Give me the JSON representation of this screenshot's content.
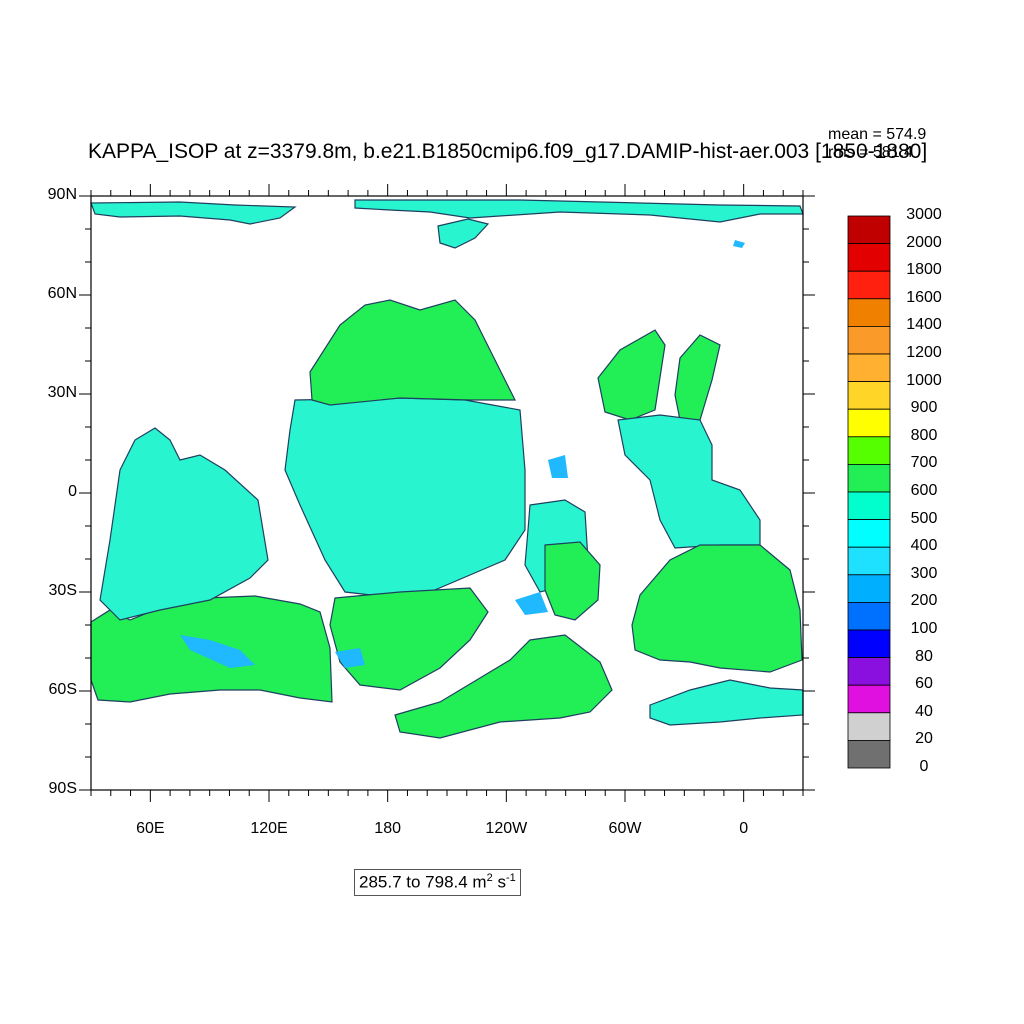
{
  "title": "KAPPA_ISOP at z=3379.8m, b.e21.B1850cmip6.f09_g17.DAMIP-hist-aer.003 [1850-1880]",
  "stats": {
    "mean": "mean = 574.9",
    "rms": "rms = 581.4"
  },
  "range": {
    "text": "285.7 to 798.4 m",
    "unit_exp1": "2",
    "unit_mid": " s",
    "unit_exp2": "-1"
  },
  "axes": {
    "y_ticks": [
      "90N",
      "60N",
      "30N",
      "0",
      "30S",
      "60S",
      "90S"
    ],
    "x_ticks": [
      "60E",
      "120E",
      "180",
      "120W",
      "60W",
      "0"
    ]
  },
  "colorbar": {
    "labels": [
      "3000",
      "2000",
      "1800",
      "1600",
      "1400",
      "1200",
      "1000",
      "900",
      "800",
      "700",
      "600",
      "500",
      "400",
      "300",
      "200",
      "100",
      "80",
      "60",
      "40",
      "20",
      "0"
    ],
    "colors": [
      "#c00000",
      "#e30000",
      "#ff2010",
      "#f08000",
      "#fa9a28",
      "#ffb030",
      "#ffd528",
      "#ffff00",
      "#56ff00",
      "#22ee55",
      "#00ffcc",
      "#00ffff",
      "#1ee0ff",
      "#00b0ff",
      "#0070ff",
      "#0000ff",
      "#8a10e0",
      "#e010e0",
      "#d0d0d0",
      "#707070"
    ]
  },
  "legend_colors": {
    "green": "#22ee55",
    "aqua": "#28f4d0",
    "blue": "#20b8ff",
    "coast": "#1e4060"
  }
}
